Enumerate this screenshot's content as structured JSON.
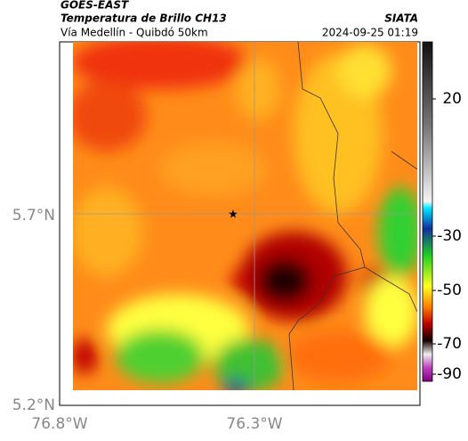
{
  "header": {
    "satellite": "GOES-EAST",
    "product": "Temperatura de Brillo CH13",
    "region": "Vía Medellín - Quibdó 50km",
    "source": "SIATA",
    "datetime": "2024-09-25 01:19"
  },
  "map": {
    "lat_ticks": [
      "5.7°N",
      "5.2°N"
    ],
    "lon_ticks": [
      "76.8°W",
      "76.3°W"
    ]
  },
  "colorbar": {
    "ticks": [
      "20",
      "-30",
      "-50",
      "-70",
      "-90"
    ]
  }
}
